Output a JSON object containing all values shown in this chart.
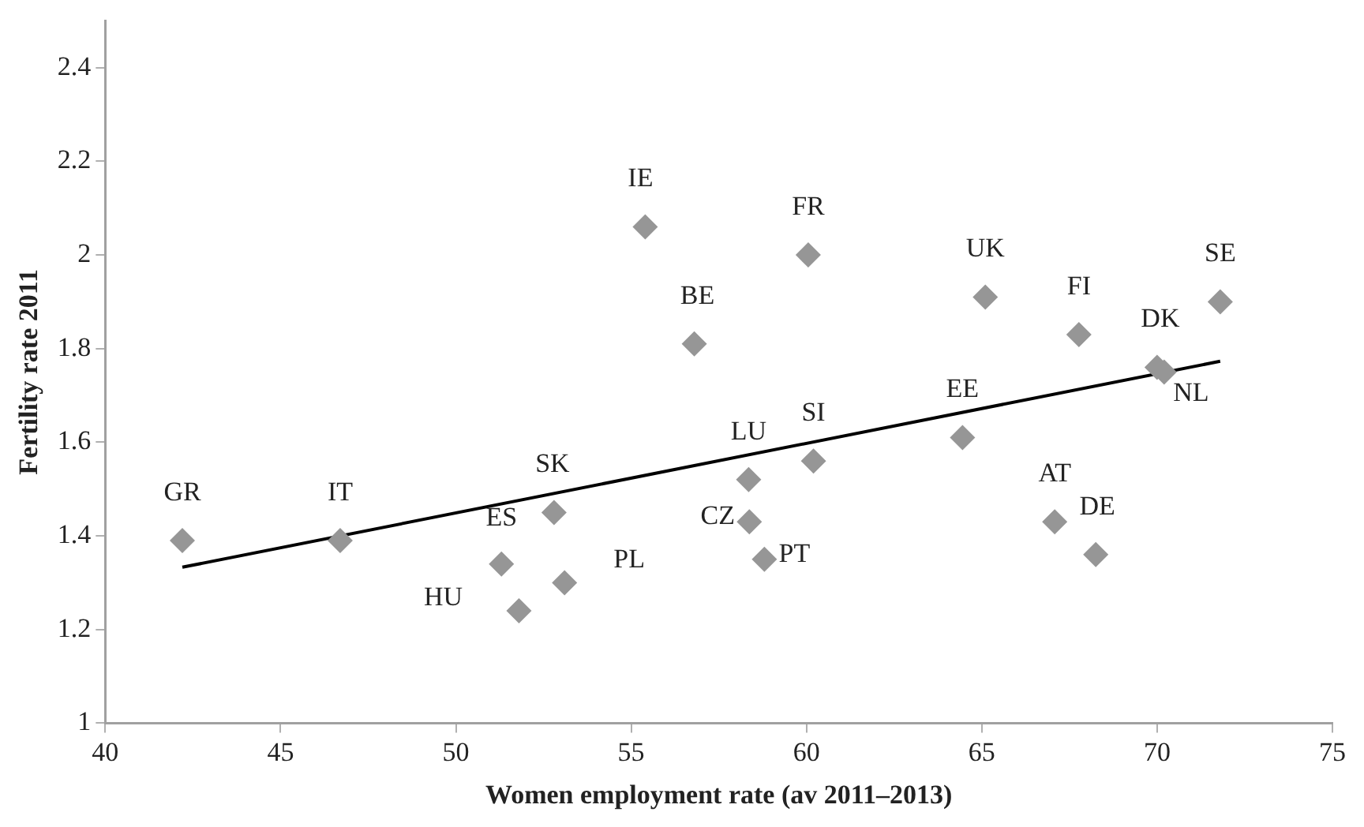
{
  "chart_data": {
    "type": "scatter",
    "xlabel": "Women employment rate (av 2011–2013)",
    "ylabel": "Fertility rate 2011",
    "xlim": [
      40,
      75
    ],
    "xticks": [
      40,
      45,
      50,
      55,
      60,
      65,
      70,
      75
    ],
    "ylim": [
      1,
      2.5
    ],
    "yticks": [
      1,
      1.2,
      1.4,
      1.6,
      1.8,
      2,
      2.2,
      2.4
    ],
    "grid": false,
    "legend": false,
    "marker": "diamond",
    "series": [
      {
        "type": "scatter",
        "color": "#969696",
        "x": [
          42.2,
          46.7,
          51.3,
          51.8,
          52.8,
          53.1,
          55.4,
          56.8,
          60.05,
          58.35,
          58.37,
          58.8,
          60.2,
          64.45,
          65.1,
          67.77,
          67.08,
          68.25,
          70.0,
          70.2,
          71.8
        ],
        "values": [
          1.39,
          1.39,
          1.34,
          1.24,
          1.45,
          1.3,
          2.06,
          1.81,
          2.0,
          1.52,
          1.43,
          1.35,
          1.56,
          1.61,
          1.91,
          1.83,
          1.43,
          1.36,
          1.76,
          1.75,
          1.9
        ]
      },
      {
        "type": "line",
        "color": "#000000",
        "marker": "none",
        "line_style": "solid",
        "x": [
          42.2,
          71.8
        ],
        "values": [
          1.333,
          1.773
        ]
      }
    ],
    "annotations": [
      {
        "text": "GR",
        "x": 42.2,
        "y": 1.39
      },
      {
        "text": "IT",
        "x": 46.7,
        "y": 1.39
      },
      {
        "text": "ES",
        "x": 51.3,
        "y": 1.34
      },
      {
        "text": "HU",
        "x": 51.8,
        "y": 1.24
      },
      {
        "text": "SK",
        "x": 52.8,
        "y": 1.45
      },
      {
        "text": "PL",
        "x": 53.1,
        "y": 1.3
      },
      {
        "text": "IE",
        "x": 55.4,
        "y": 2.06
      },
      {
        "text": "BE",
        "x": 56.8,
        "y": 1.81
      },
      {
        "text": "FR",
        "x": 60.05,
        "y": 2.0
      },
      {
        "text": "LU",
        "x": 58.35,
        "y": 1.52
      },
      {
        "text": "CZ",
        "x": 58.37,
        "y": 1.43
      },
      {
        "text": "PT",
        "x": 58.8,
        "y": 1.35
      },
      {
        "text": "SI",
        "x": 60.2,
        "y": 1.56
      },
      {
        "text": "EE",
        "x": 64.45,
        "y": 1.61
      },
      {
        "text": "UK",
        "x": 65.1,
        "y": 1.91
      },
      {
        "text": "FI",
        "x": 67.77,
        "y": 1.83
      },
      {
        "text": "AT",
        "x": 67.08,
        "y": 1.43
      },
      {
        "text": "DE",
        "x": 68.25,
        "y": 1.36
      },
      {
        "text": "DK",
        "x": 70.0,
        "y": 1.76
      },
      {
        "text": "NL",
        "x": 70.2,
        "y": 1.75
      },
      {
        "text": "SE",
        "x": 71.8,
        "y": 1.9
      }
    ]
  }
}
